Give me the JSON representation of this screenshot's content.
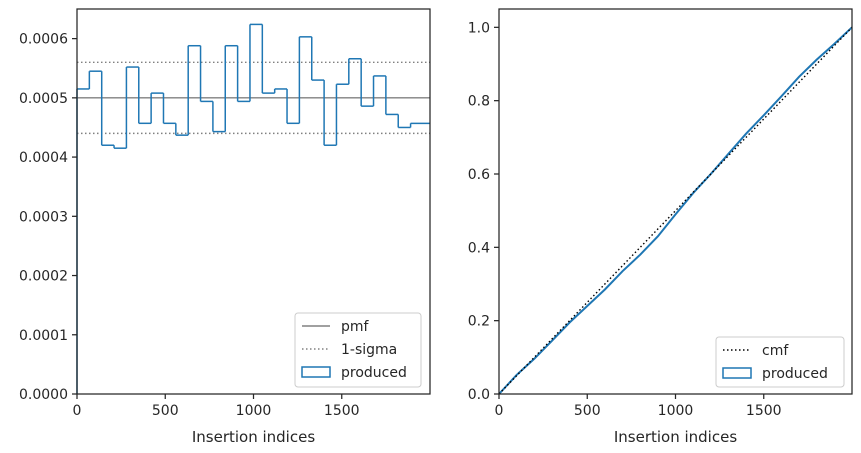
{
  "chart_data": [
    {
      "type": "histogram",
      "xlabel": "Insertion indices",
      "ylabel": "",
      "xlim": [
        0,
        2000
      ],
      "ylim": [
        0,
        0.00065
      ],
      "xticks": [
        "0",
        "500",
        "1000",
        "1500"
      ],
      "yticks": [
        "0.0000",
        "0.0001",
        "0.0002",
        "0.0003",
        "0.0004",
        "0.0005",
        "0.0006"
      ],
      "xtick_values": [
        0,
        500,
        1000,
        1500
      ],
      "ytick_values": [
        0,
        0.0001,
        0.0002,
        0.0003,
        0.0004,
        0.0005,
        0.0006
      ],
      "grid": false,
      "legend_position": "bottom-right",
      "reference_lines": [
        {
          "name": "pmf",
          "y": 0.0005,
          "style": "solid",
          "color": "#808080"
        },
        {
          "name": "1-sigma",
          "y": 0.00056,
          "style": "dotted",
          "color": "#808080"
        },
        {
          "name": "1-sigma",
          "y": 0.00044,
          "style": "dotted",
          "color": "#808080"
        }
      ],
      "series": [
        {
          "name": "produced",
          "color": "#1f77b4",
          "bin_edges": [
            0,
            70,
            140,
            210,
            280,
            350,
            420,
            490,
            560,
            630,
            700,
            770,
            840,
            910,
            980,
            1050,
            1120,
            1190,
            1260,
            1330,
            1400,
            1470,
            1540,
            1610,
            1680,
            1750,
            1820,
            1890,
            2000
          ],
          "values": [
            0.000515,
            0.000545,
            0.00042,
            0.000415,
            0.000552,
            0.000457,
            0.000508,
            0.000457,
            0.000437,
            0.000588,
            0.000494,
            0.000443,
            0.000588,
            0.000494,
            0.000624,
            0.000508,
            0.000515,
            0.000457,
            0.000603,
            0.00053,
            0.00042,
            0.000523,
            0.000566,
            0.000486,
            0.000537,
            0.000472,
            0.00045,
            0.000457
          ]
        }
      ],
      "legend": [
        "pmf",
        "1-sigma",
        "produced"
      ]
    },
    {
      "type": "line",
      "xlabel": "Insertion indices",
      "ylabel": "",
      "xlim": [
        0,
        2000
      ],
      "ylim": [
        0,
        1.05
      ],
      "xticks": [
        "0",
        "500",
        "1000",
        "1500"
      ],
      "yticks": [
        "0.0",
        "0.2",
        "0.4",
        "0.6",
        "0.8",
        "1.0"
      ],
      "xtick_values": [
        0,
        500,
        1000,
        1500
      ],
      "ytick_values": [
        0,
        0.2,
        0.4,
        0.6,
        0.8,
        1.0
      ],
      "grid": false,
      "legend_position": "bottom-right",
      "series": [
        {
          "name": "cmf",
          "style": "dotted",
          "color": "#000000",
          "x": [
            0,
            2000
          ],
          "y": [
            0,
            1.0
          ]
        },
        {
          "name": "produced",
          "style": "step",
          "color": "#1f77b4",
          "x": [
            0,
            100,
            200,
            300,
            400,
            500,
            600,
            700,
            800,
            900,
            1000,
            1100,
            1200,
            1300,
            1400,
            1500,
            1600,
            1700,
            1800,
            1900,
            2000
          ],
          "y": [
            0,
            0.052,
            0.096,
            0.145,
            0.195,
            0.24,
            0.285,
            0.335,
            0.38,
            0.43,
            0.49,
            0.548,
            0.6,
            0.655,
            0.71,
            0.76,
            0.812,
            0.865,
            0.912,
            0.955,
            1.0
          ]
        }
      ],
      "legend": [
        "cmf",
        "produced"
      ]
    }
  ]
}
